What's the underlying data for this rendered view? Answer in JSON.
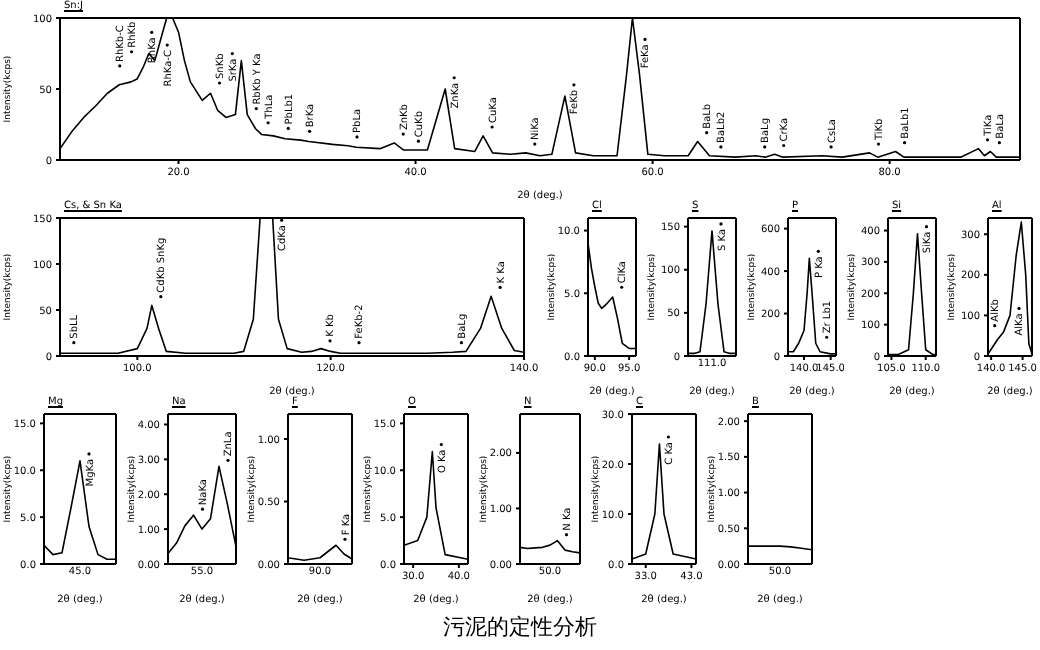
{
  "chart_data": [
    {
      "type": "line",
      "title": "Sn:J",
      "xlabel": "2θ (deg.)",
      "ylabel": "Intensity(kcps)",
      "xlim": [
        10,
        91
      ],
      "ylim": [
        0,
        100
      ],
      "xticks": [
        {
          "value": 20,
          "label": "20.0"
        },
        {
          "value": 40,
          "label": "40.0"
        },
        {
          "value": 60,
          "label": "60.0"
        },
        {
          "value": 80,
          "label": "80.0"
        }
      ],
      "yticks": [
        0,
        50,
        100
      ],
      "x": [
        10,
        11,
        12,
        13,
        14,
        15,
        16,
        16.5,
        17,
        17.5,
        18,
        18.5,
        19,
        19.5,
        20,
        20.5,
        21,
        22,
        22.7,
        23.3,
        24,
        24.8,
        25.3,
        25.8,
        26.5,
        27,
        28,
        29,
        30.3,
        31,
        33,
        34.3,
        35,
        37,
        38.2,
        39,
        41,
        42.5,
        43.3,
        45,
        45.7,
        46.5,
        48,
        49.3,
        50.5,
        51.5,
        52.6,
        53.5,
        55,
        57,
        57.8,
        58.3,
        58.9,
        59.6,
        61,
        63,
        63.8,
        64.8,
        67,
        68.7,
        69.5,
        70.3,
        71,
        74.3,
        76,
        78.3,
        79,
        80.5,
        81.2,
        86,
        87.5,
        88,
        88.5,
        89,
        91
      ],
      "values": [
        8,
        20,
        30,
        38,
        47,
        53,
        55,
        57,
        65,
        75,
        70,
        85,
        100,
        100,
        90,
        70,
        55,
        42,
        47,
        35,
        30,
        32,
        70,
        32,
        22,
        18,
        17,
        15,
        14,
        13,
        11,
        10,
        9,
        8,
        12,
        7,
        7,
        50,
        8,
        6,
        17,
        5,
        4,
        5,
        3,
        4,
        45,
        5,
        3,
        3,
        60,
        100,
        60,
        4,
        3,
        3,
        13,
        3,
        2,
        3,
        2,
        4,
        2,
        3,
        2,
        5,
        2,
        6,
        2,
        2,
        8,
        3,
        6,
        2,
        2
      ],
      "color": "#000000",
      "annotations": [
        "污泥的定性分析",
        {
          "text": "RhKb-C",
          "x": 15.8,
          "y": 62
        },
        {
          "text": "RhKb",
          "x": 16.8,
          "y": 72
        },
        {
          "text": "RhKa-C",
          "x": 17.7,
          "y": 76
        },
        {
          "text": "RhKa",
          "x": 18.5,
          "y": 85
        },
        {
          "text": "SnKb",
          "x": 22.7,
          "y": 50
        },
        {
          "text": "RbKb Y Ka",
          "x": 24.2,
          "y": 32
        },
        {
          "text": "SrKa",
          "x": 25.3,
          "y": 70
        },
        {
          "text": "ThLa",
          "x": 26.8,
          "y": 22
        },
        {
          "text": "PbLb1",
          "x": 28.5,
          "y": 18
        },
        {
          "text": "BrKa",
          "x": 30.3,
          "y": 16
        },
        {
          "text": "PbLa",
          "x": 34.3,
          "y": 12
        },
        {
          "text": "ZnKb",
          "x": 38.2,
          "y": 14
        },
        {
          "text": "CuKb",
          "x": 41,
          "y": 9
        },
        {
          "text": "ZnKa",
          "x": 42.5,
          "y": 53
        },
        {
          "text": "CuKa",
          "x": 45.7,
          "y": 19
        },
        {
          "text": "NiKa",
          "x": 49.3,
          "y": 7
        },
        {
          "text": "FeKb",
          "x": 52.6,
          "y": 48
        },
        {
          "text": "FeKa",
          "x": 58.6,
          "y": 80
        },
        {
          "text": "BaLb",
          "x": 63.8,
          "y": 15
        },
        {
          "text": "BaLb2",
          "x": 65,
          "y": 5
        },
        {
          "text": "BaLg",
          "x": 68.7,
          "y": 5
        },
        {
          "text": "CrKa",
          "x": 70.3,
          "y": 6
        },
        {
          "text": "CsLa",
          "x": 74.3,
          "y": 5
        },
        {
          "text": "TiKb",
          "x": 78.3,
          "y": 7
        },
        {
          "text": "BaLb1",
          "x": 80.5,
          "y": 8
        },
        {
          "text": "TiKa",
          "x": 87.5,
          "y": 10
        },
        {
          "text": "BaLa",
          "x": 88.5,
          "y": 8
        }
      ]
    },
    {
      "type": "line",
      "title": "Cs, & Sn Ka",
      "xlabel": "2θ (deg.)",
      "ylabel": "Intensity(kcps)",
      "xlim": [
        92,
        140
      ],
      "ylim": [
        0,
        150
      ],
      "xticks": [
        {
          "value": 100,
          "label": "100.0"
        },
        {
          "value": 120,
          "label": "120.0"
        },
        {
          "value": 140,
          "label": "140.0"
        }
      ],
      "yticks": [
        0,
        50,
        100,
        150
      ],
      "x": [
        92,
        95,
        98,
        100,
        101,
        101.5,
        102.2,
        103,
        105,
        110,
        111,
        112,
        112.7,
        113.3,
        114,
        114.6,
        115.5,
        117,
        118,
        119,
        120,
        121,
        125,
        130,
        132.6,
        134,
        135.5,
        136.6,
        137.7,
        139,
        140
      ],
      "values": [
        3,
        3,
        3,
        8,
        30,
        55,
        30,
        5,
        3,
        3,
        5,
        40,
        150,
        150,
        150,
        40,
        8,
        4,
        5,
        8,
        5,
        3,
        3,
        3,
        4,
        5,
        30,
        65,
        30,
        6,
        4
      ],
      "color": "#000000",
      "annotations": [
        {
          "text": "SbLL",
          "x": 92.5,
          "y": 8
        },
        {
          "text": "CdKb SnKg",
          "x": 101.5,
          "y": 58
        },
        {
          "text": "CdKa",
          "x": 114,
          "y": 140
        },
        {
          "text": "K Kb",
          "x": 119,
          "y": 10
        },
        {
          "text": "FeKb-2",
          "x": 122,
          "y": 8
        },
        {
          "text": "BaLg",
          "x": 132.6,
          "y": 8
        },
        {
          "text": "K Ka",
          "x": 136.6,
          "y": 68
        }
      ]
    },
    {
      "type": "line",
      "title": "Cl",
      "xlabel": "2θ (deg.)",
      "ylabel": "Intensity(kcps)",
      "xlim": [
        89,
        96
      ],
      "ylim": [
        0,
        11
      ],
      "xticks": [
        {
          "value": 90,
          "label": "90.0"
        },
        {
          "value": 95,
          "label": "95.0"
        }
      ],
      "yticks": [
        {
          "value": 0,
          "label": "0.0"
        },
        {
          "value": 5,
          "label": "5.0"
        },
        {
          "value": 10,
          "label": "10.0"
        }
      ],
      "x": [
        89,
        89.5,
        90,
        90.5,
        91,
        91.8,
        92.6,
        93.3,
        94,
        95,
        96
      ],
      "values": [
        9,
        7,
        5.5,
        4.2,
        3.8,
        4.2,
        4.7,
        3,
        1,
        0.6,
        0.6
      ],
      "color": "#000000",
      "annotations": [
        {
          "text": "ClKa",
          "x": 92.6,
          "y": 5
        }
      ]
    },
    {
      "type": "line",
      "title": "S",
      "xlabel": "2θ (deg.)",
      "ylabel": "Intensity(kcps)",
      "ylim": [
        0,
        160
      ],
      "yticks": [
        0,
        50,
        100,
        150
      ],
      "categories": [
        null,
        null,
        null,
        null,
        null,
        null,
        null,
        null,
        null
      ],
      "values": [
        3,
        3,
        5,
        60,
        145,
        60,
        5,
        3,
        3
      ],
      "color": "#000000",
      "annotations": [
        "111.0",
        {
          "text": "S Ka",
          "y": 145
        }
      ]
    },
    {
      "type": "line",
      "title": "P",
      "xlabel": "2θ (deg.)",
      "ylabel": "Intensity(kcps)",
      "xlim": [
        137,
        146
      ],
      "ylim": [
        0,
        650
      ],
      "xticks": [
        {
          "value": 140,
          "label": "140.0"
        },
        {
          "value": 145,
          "label": "145.0"
        }
      ],
      "yticks": [
        0,
        200,
        400,
        600
      ],
      "x": [
        137,
        138,
        139,
        139.5,
        140,
        140.6,
        141,
        141.5,
        142.2,
        143,
        145,
        146
      ],
      "values": [
        20,
        20,
        60,
        90,
        120,
        300,
        460,
        300,
        60,
        20,
        10,
        10
      ],
      "color": "#000000",
      "annotations": [
        {
          "text": "P Ka",
          "x": 141,
          "y": 460
        },
        {
          "text": "Zr Lb1",
          "x": 139,
          "y": 60
        }
      ]
    },
    {
      "type": "line",
      "title": "Si",
      "xlabel": "2θ (deg.)",
      "ylabel": "Intensity(kcps)",
      "xlim": [
        104.5,
        111.5
      ],
      "ylim": [
        0,
        440
      ],
      "xticks": [
        {
          "value": 105,
          "label": "105.0"
        },
        {
          "value": 110,
          "label": "110.0"
        }
      ],
      "yticks": [
        0,
        100,
        200,
        300,
        400
      ],
      "x": [
        104.5,
        106,
        107.5,
        108.2,
        108.8,
        109.4,
        110,
        111,
        111.5
      ],
      "values": [
        5,
        5,
        20,
        200,
        390,
        200,
        20,
        5,
        5
      ],
      "color": "#000000",
      "annotations": [
        {
          "text": "SiKa",
          "x": 108.8,
          "y": 390
        }
      ]
    },
    {
      "type": "line",
      "title": "Al",
      "xlabel": "2θ (deg.)",
      "ylabel": "Intensity(kcps)",
      "xlim": [
        139.5,
        146.5
      ],
      "ylim": [
        0,
        340
      ],
      "xticks": [
        {
          "value": 140,
          "label": "140.0"
        },
        {
          "value": 145,
          "label": "145.0"
        }
      ],
      "yticks": [
        0,
        100,
        200,
        300
      ],
      "x": [
        139.5,
        141,
        142,
        143,
        144,
        144.8,
        145.5,
        146,
        146.5
      ],
      "values": [
        5,
        40,
        60,
        100,
        250,
        330,
        200,
        30,
        5
      ],
      "color": "#000000",
      "annotations": [
        {
          "text": "AlKa",
          "x": 143,
          "y": 100
        },
        {
          "text": "AlKb",
          "x": 142,
          "y": 60
        }
      ]
    },
    {
      "type": "line",
      "title": "Mg",
      "xlabel": "2θ (deg.)",
      "ylabel": "Intensity(kcps)",
      "ylim": [
        0,
        16
      ],
      "yticks": [
        {
          "value": 0,
          "label": "0.0"
        },
        {
          "value": 5,
          "label": "5.0"
        },
        {
          "value": 10,
          "label": "10.0"
        },
        {
          "value": 15,
          "label": "15.0"
        }
      ],
      "categories": [
        null,
        null,
        null,
        null,
        null,
        null,
        null,
        null,
        null
      ],
      "values": [
        2,
        1,
        1.2,
        6,
        11,
        4,
        1,
        0.5,
        0.5
      ],
      "color": "#000000",
      "annotations": [
        "45.0",
        {
          "text": "MgKa",
          "y": 11
        }
      ]
    },
    {
      "type": "line",
      "title": "Na",
      "xlabel": "2θ (deg.)",
      "ylabel": "Intensity(kcps)",
      "ylim": [
        0,
        4.3
      ],
      "yticks": [
        {
          "value": 0,
          "label": "0.00"
        },
        {
          "value": 1,
          "label": "1.00"
        },
        {
          "value": 2,
          "label": "2.00"
        },
        {
          "value": 3,
          "label": "3.00"
        },
        {
          "value": 4,
          "label": "4.00"
        }
      ],
      "categories": [
        null,
        null,
        null,
        null,
        null,
        null,
        null,
        null,
        null
      ],
      "values": [
        0.3,
        0.6,
        1.1,
        1.4,
        1,
        1.3,
        2.8,
        1.7,
        0.5
      ],
      "color": "#000000",
      "annotations": [
        "55.0",
        {
          "text": "NaKa",
          "y": 1.4
        },
        {
          "text": "ZnLa",
          "y": 2.8
        }
      ]
    },
    {
      "type": "line",
      "title": "F",
      "xlabel": "2θ (deg.)",
      "ylabel": "Intensity(kcps)",
      "ylim": [
        0,
        1.2
      ],
      "yticks": [
        {
          "value": 0,
          "label": "0.00"
        },
        {
          "value": 0.5,
          "label": "0.50"
        },
        {
          "value": 1,
          "label": "1.00"
        }
      ],
      "categories": [
        null,
        null,
        null,
        null,
        null,
        null,
        null,
        null,
        null
      ],
      "values": [
        0.05,
        0.04,
        0.03,
        0.04,
        0.05,
        0.1,
        0.15,
        0.08,
        0.04
      ],
      "color": "#000000",
      "annotations": [
        "90.0",
        {
          "text": "F Ka",
          "y": 0.15
        }
      ]
    },
    {
      "type": "line",
      "title": "O",
      "xlabel": "2θ (deg.)",
      "ylabel": "Intensity(kcps)",
      "xlim": [
        28,
        42
      ],
      "ylim": [
        0,
        16
      ],
      "xticks": [
        {
          "value": 30,
          "label": "30.0"
        },
        {
          "value": 40,
          "label": "40.0"
        }
      ],
      "yticks": [
        {
          "value": 0,
          "label": "0.0"
        },
        {
          "value": 5,
          "label": "5.0"
        },
        {
          "value": 10,
          "label": "10.0"
        },
        {
          "value": 15,
          "label": "15.0"
        }
      ],
      "x": [
        28,
        31,
        33,
        34.2,
        35,
        37,
        42
      ],
      "values": [
        2,
        2.5,
        5,
        12,
        6,
        1,
        0.5
      ],
      "color": "#000000",
      "annotations": [
        {
          "text": "O Ka",
          "x": 34.2,
          "y": 12
        }
      ]
    },
    {
      "type": "line",
      "title": "N",
      "xlabel": "2θ (deg.)",
      "ylabel": "Intensity(kcps)",
      "ylim": [
        0,
        2.7
      ],
      "yticks": [
        {
          "value": 0,
          "label": "0.00"
        },
        {
          "value": 1,
          "label": "1.00"
        },
        {
          "value": 2,
          "label": "2.00"
        }
      ],
      "categories": [
        null,
        null,
        null,
        null,
        null,
        null,
        null,
        null,
        null
      ],
      "values": [
        0.3,
        0.28,
        0.29,
        0.3,
        0.34,
        0.42,
        0.25,
        0.22,
        0.2
      ],
      "color": "#000000",
      "annotations": [
        "50.0",
        {
          "text": "N Ka",
          "y": 0.42
        }
      ]
    },
    {
      "type": "line",
      "title": "C",
      "xlabel": "2θ (deg.)",
      "ylabel": "Intensity(kcps)",
      "xlim": [
        30,
        44
      ],
      "ylim": [
        0,
        30
      ],
      "xticks": [
        {
          "value": 33,
          "label": "33.0"
        },
        {
          "value": 43,
          "label": "43.0"
        }
      ],
      "yticks": [
        {
          "value": 0,
          "label": "0.0"
        },
        {
          "value": 10,
          "label": "10.0"
        },
        {
          "value": 20,
          "label": "20.0"
        },
        {
          "value": 30,
          "label": "30.0"
        }
      ],
      "x": [
        30,
        33,
        35,
        36,
        37,
        39,
        44
      ],
      "values": [
        1,
        2,
        10,
        24,
        10,
        2,
        1
      ],
      "color": "#000000",
      "annotations": [
        {
          "text": "C Ka",
          "x": 36,
          "y": 24
        }
      ]
    },
    {
      "type": "line",
      "title": "B",
      "xlabel": "2θ (deg.)",
      "ylabel": "Intensity(kcps)",
      "ylim": [
        0,
        2.1
      ],
      "yticks": [
        {
          "value": 0,
          "label": "0.00"
        },
        {
          "value": 0.5,
          "label": "0.50"
        },
        {
          "value": 1,
          "label": "1.00"
        },
        {
          "value": 1.5,
          "label": "1.50"
        },
        {
          "value": 2,
          "label": "2.00"
        }
      ],
      "categories": [
        null,
        null,
        null,
        null,
        null,
        null,
        null
      ],
      "values": [
        0.25,
        0.25,
        0.25,
        0.25,
        0.24,
        0.22,
        0.2
      ],
      "color": "#000000",
      "annotations": [
        "50.0"
      ]
    }
  ]
}
